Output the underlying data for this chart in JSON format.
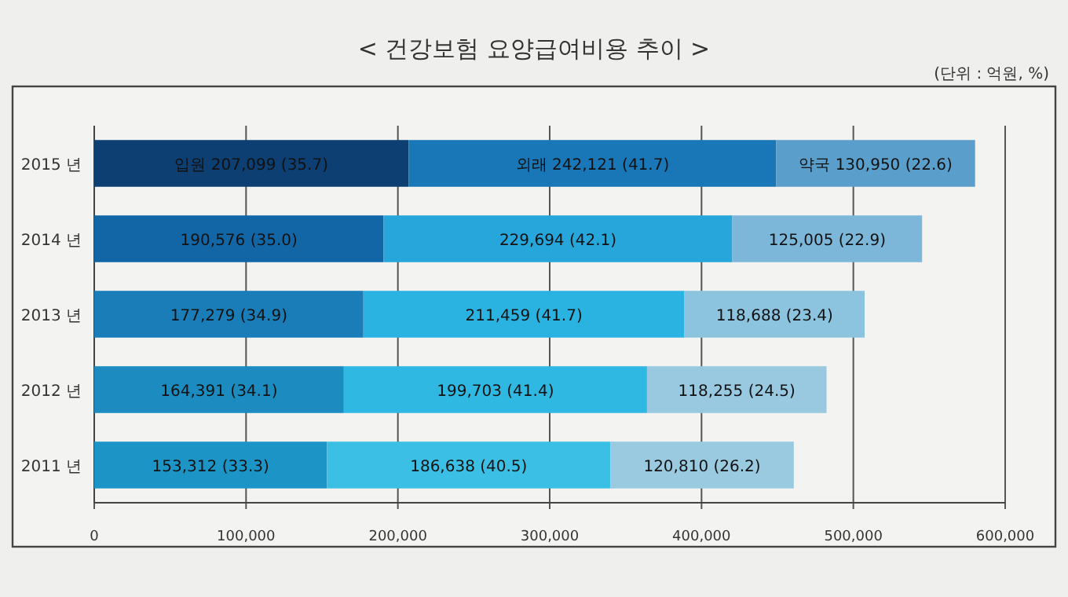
{
  "chart_data": {
    "type": "bar",
    "orientation": "horizontal",
    "stacked": true,
    "title": "< 건강보험 요양급여비용 추이 >",
    "annotations": [
      "(단위 : 억원, %)"
    ],
    "categories": [
      "2015 년",
      "2014 년",
      "2013 년",
      "2012 년",
      "2011 년"
    ],
    "series": [
      {
        "colors": [
          "#0d3f73",
          "#1366a6",
          "#1a7db8",
          "#1c8bc0",
          "#1d94c6"
        ],
        "values": [
          207099,
          190576,
          177279,
          164391,
          153312
        ],
        "value_labels": [
          "입원 207,099 (35.7)",
          "190,576 (35.0)",
          "177,279 (34.9)",
          "164,391 (34.1)",
          "153,312 (33.3)"
        ]
      },
      {
        "colors": [
          "#1a77b7",
          "#27a6dc",
          "#2ab3e0",
          "#2fb8e2",
          "#3bbfe4"
        ],
        "values": [
          242121,
          229694,
          211459,
          199703,
          186638
        ],
        "value_labels": [
          "외래 242,121 (41.7)",
          "229,694 (42.1)",
          "211,459 (41.7)",
          "199,703 (41.4)",
          "186,638 (40.5)"
        ]
      },
      {
        "colors": [
          "#5a9fcb",
          "#7cb6d8",
          "#8cc3de",
          "#98c9e0",
          "#99cae0"
        ],
        "values": [
          130950,
          125005,
          118688,
          118255,
          120810
        ],
        "value_labels": [
          "약국 130,950 (22.6)",
          "125,005 (22.9)",
          "118,688 (23.4)",
          "118,255 (24.5)",
          "120,810 (26.2)"
        ]
      }
    ],
    "xlim": [
      0,
      600000
    ],
    "xticks": [
      {
        "value": 0,
        "label": "0"
      },
      {
        "value": 100000,
        "label": "100,000"
      },
      {
        "value": 200000,
        "label": "200,000"
      },
      {
        "value": 300000,
        "label": "300,000"
      },
      {
        "value": 400000,
        "label": "400,000"
      },
      {
        "value": 500000,
        "label": "500,000"
      },
      {
        "value": 600000,
        "label": "600,000"
      }
    ],
    "grid": "x"
  }
}
